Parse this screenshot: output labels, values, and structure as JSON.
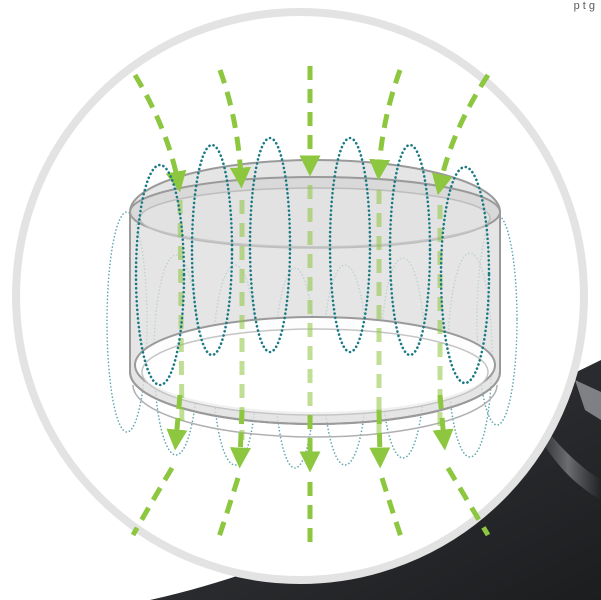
{
  "corner_text": "p   t   g",
  "colors": {
    "field_arrow": "#8dc63f",
    "field_loop": "#1a7a84",
    "ring_fill": "#e6e6e6",
    "ring_edge": "#9a9a9a",
    "circle_border": "#e3e3e3",
    "background_dark": "#2e3033"
  },
  "icons": {
    "arrow_head": "triangle-arrowhead-icon",
    "current_loop": "dotted-ellipse-loop-icon"
  }
}
